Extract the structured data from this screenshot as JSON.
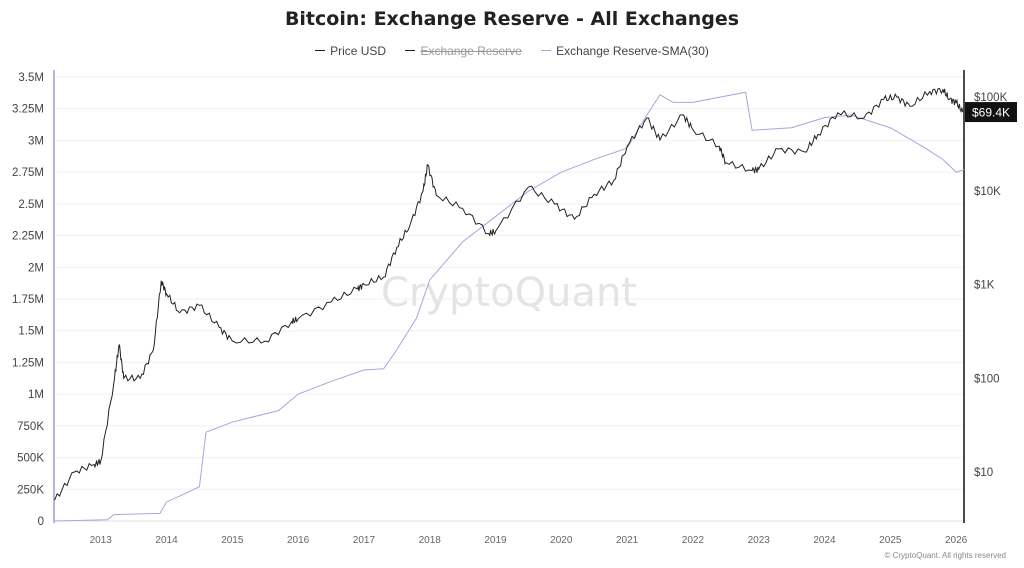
{
  "chart_data": {
    "type": "line",
    "title": "Bitcoin: Exchange Reserve - All Exchanges",
    "legend": [
      {
        "name": "Price USD",
        "color": "#222222",
        "visible": true
      },
      {
        "name": "Exchange Reserve",
        "color": "#222222",
        "visible": false
      },
      {
        "name": "Exchange Reserve-SMA(30)",
        "color": "#a9a3e0",
        "visible": true
      }
    ],
    "x_ticks": [
      "2013",
      "2014",
      "2015",
      "2016",
      "2017",
      "2018",
      "2019",
      "2020",
      "2021",
      "2022",
      "2023",
      "2024",
      "2025",
      "2026"
    ],
    "xlim": [
      2012.29,
      2026.12
    ],
    "y_left": {
      "ticks": [
        0,
        250000,
        500000,
        750000,
        1000000,
        1250000,
        1500000,
        1750000,
        2000000,
        2250000,
        2500000,
        2750000,
        3000000,
        3250000,
        3500000
      ],
      "tick_labels": [
        "0",
        "250K",
        "500K",
        "750K",
        "1M",
        "1.25M",
        "1.5M",
        "1.75M",
        "2M",
        "2.25M",
        "2.5M",
        "2.75M",
        "3M",
        "3.25M",
        "3.5M"
      ],
      "ylim": [
        0,
        3500000
      ]
    },
    "y_right": {
      "scale": "log",
      "ticks": [
        10,
        100,
        1000,
        10000,
        100000
      ],
      "tick_labels": [
        "$10",
        "$100",
        "$1K",
        "$10K",
        "$100K"
      ]
    },
    "last_price_label": "$69.4K",
    "grid": true,
    "watermark": "CryptoQuant",
    "series": [
      {
        "name": "Price USD",
        "axis": "right",
        "x": [
          2012.3,
          2012.6,
          2012.9,
          2013.0,
          2013.2,
          2013.28,
          2013.35,
          2013.6,
          2013.8,
          2013.92,
          2014.0,
          2014.2,
          2014.5,
          2014.8,
          2015.0,
          2015.5,
          2015.9,
          2016.0,
          2016.5,
          2016.9,
          2017.0,
          2017.3,
          2017.5,
          2017.7,
          2017.9,
          2017.97,
          2018.1,
          2018.5,
          2018.9,
          2019.0,
          2019.5,
          2019.9,
          2020.2,
          2020.5,
          2020.8,
          2021.0,
          2021.3,
          2021.5,
          2021.85,
          2022.0,
          2022.4,
          2022.5,
          2022.9,
          2023.0,
          2023.3,
          2023.7,
          2023.9,
          2024.2,
          2024.6,
          2024.9,
          2025.1,
          2025.3,
          2025.6,
          2025.8,
          2025.9,
          2026.0,
          2026.1
        ],
        "y": [
          5,
          10,
          12,
          13,
          90,
          230,
          100,
          100,
          200,
          1100,
          800,
          500,
          600,
          350,
          250,
          250,
          400,
          430,
          650,
          900,
          1000,
          1200,
          2500,
          4300,
          10000,
          19000,
          9000,
          6500,
          3500,
          3700,
          11000,
          7200,
          5000,
          9200,
          13000,
          30000,
          60000,
          35000,
          65000,
          45000,
          30000,
          20000,
          16500,
          17000,
          28000,
          26000,
          40000,
          68000,
          60000,
          95000,
          100000,
          80000,
          115000,
          120000,
          95000,
          88000,
          69400
        ]
      },
      {
        "name": "Exchange Reserve-SMA(30)",
        "axis": "left",
        "x": [
          2012.29,
          2013.1,
          2013.2,
          2013.9,
          2014.0,
          2014.3,
          2014.5,
          2014.6,
          2015.0,
          2015.7,
          2016.0,
          2016.5,
          2017.0,
          2017.3,
          2017.5,
          2017.8,
          2018.0,
          2018.5,
          2019.0,
          2019.5,
          2020.0,
          2020.5,
          2021.0,
          2021.3,
          2021.5,
          2021.7,
          2022.0,
          2022.5,
          2022.8,
          2022.9,
          2023.5,
          2024.0,
          2024.4,
          2025.0,
          2025.5,
          2025.8,
          2026.0,
          2026.12
        ],
        "y": [
          0,
          10000,
          50000,
          60000,
          150000,
          220000,
          270000,
          700000,
          780000,
          870000,
          1000000,
          1100000,
          1190000,
          1200000,
          1350000,
          1600000,
          1900000,
          2200000,
          2400000,
          2600000,
          2750000,
          2850000,
          2940000,
          3200000,
          3360000,
          3300000,
          3300000,
          3350000,
          3380000,
          3080000,
          3100000,
          3180000,
          3200000,
          3100000,
          2950000,
          2850000,
          2750000,
          2770000
        ]
      }
    ]
  },
  "footer": {
    "copyright": "© CryptoQuant. All rights reserved"
  }
}
